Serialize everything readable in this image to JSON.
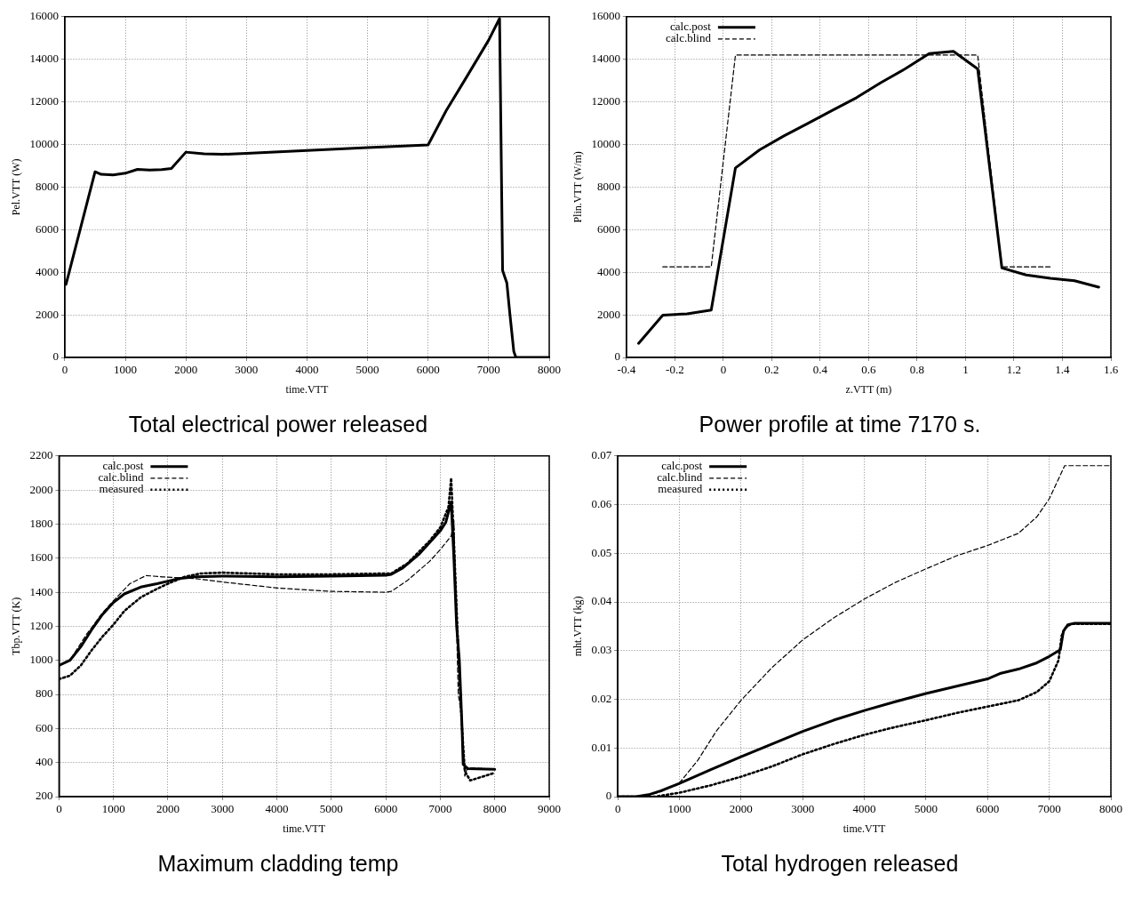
{
  "chart_data": [
    {
      "type": "line",
      "title": "Total electrical power released",
      "xlabel": "time.VTT",
      "ylabel": "Pel.VTT (W)",
      "xlim": [
        0,
        8000
      ],
      "xticks": [
        0,
        1000,
        2000,
        3000,
        4000,
        5000,
        6000,
        7000,
        8000
      ],
      "ylim": [
        0,
        16000
      ],
      "yticks": [
        0,
        2000,
        4000,
        6000,
        8000,
        10000,
        12000,
        14000,
        16000
      ],
      "grid": true,
      "legend": false,
      "marker": "none",
      "series": [
        {
          "color": "#000000",
          "line_style": "solid",
          "x": [
            20,
            500,
            600,
            800,
            1000,
            1200,
            1400,
            1600,
            1760,
            2000,
            2300,
            2600,
            3000,
            4000,
            5000,
            6000,
            6300,
            6600,
            7000,
            7180,
            7230,
            7300,
            7350,
            7415,
            7450,
            8000
          ],
          "values": [
            3430,
            8720,
            8600,
            8570,
            8650,
            8830,
            8800,
            8820,
            8870,
            9640,
            9560,
            9540,
            9580,
            9720,
            9850,
            9980,
            11600,
            13000,
            14900,
            15920,
            4080,
            3500,
            2050,
            280,
            0,
            0
          ]
        }
      ]
    },
    {
      "type": "line",
      "title": "Power profile at time 7170 s.",
      "xlabel": "z.VTT (m)",
      "ylabel": "Plin.VTT (W/m)",
      "xlim": [
        -0.4,
        1.6
      ],
      "xticks": [
        -0.4,
        -0.2,
        0,
        0.2,
        0.4,
        0.6,
        0.8,
        1,
        1.2,
        1.4,
        1.6
      ],
      "ylim": [
        0,
        16000
      ],
      "yticks": [
        0,
        2000,
        4000,
        6000,
        8000,
        10000,
        12000,
        14000,
        16000
      ],
      "grid": true,
      "legend": "top left",
      "marker": "none",
      "series": [
        {
          "name": "calc.post",
          "color": "#000000",
          "line_style": "solid",
          "x": [
            -0.35,
            -0.25,
            -0.15,
            -0.05,
            0.05,
            0.15,
            0.25,
            0.35,
            0.45,
            0.55,
            0.65,
            0.75,
            0.85,
            0.95,
            1.05,
            1.15,
            1.25,
            1.35,
            1.45,
            1.55
          ],
          "values": [
            660,
            1980,
            2050,
            2220,
            8900,
            9750,
            10400,
            11000,
            11600,
            12200,
            12900,
            13550,
            14270,
            14370,
            13550,
            4200,
            3870,
            3720,
            3600,
            3300
          ]
        },
        {
          "name": "calc.blind",
          "color": "#000000",
          "line_style": "dashed",
          "x": [
            -0.25,
            -0.05,
            0.05,
            1.05,
            1.15,
            1.35
          ],
          "values": [
            4250,
            4250,
            14200,
            14200,
            4250,
            4250
          ]
        }
      ]
    },
    {
      "type": "line",
      "title": "Maximum cladding temp",
      "xlabel": "time.VTT",
      "ylabel": "Tbp.VTT (K)",
      "xlim": [
        0,
        9000
      ],
      "xticks": [
        0,
        1000,
        2000,
        3000,
        4000,
        5000,
        6000,
        7000,
        8000,
        9000
      ],
      "ylim": [
        200,
        2200
      ],
      "yticks": [
        200,
        400,
        600,
        800,
        1000,
        1200,
        1400,
        1600,
        1800,
        2000,
        2200
      ],
      "grid": true,
      "legend": "top left",
      "marker": "none",
      "series": [
        {
          "name": "calc.post",
          "color": "#000000",
          "line_style": "solid",
          "x": [
            0,
            200,
            400,
            600,
            800,
            1000,
            1200,
            1500,
            1800,
            2000,
            2200,
            2500,
            3000,
            4000,
            5000,
            6000,
            6100,
            6300,
            6600,
            7000,
            7100,
            7200,
            7250,
            7300,
            7350,
            7400,
            7420,
            7500,
            8000
          ],
          "values": [
            970,
            1000,
            1080,
            1180,
            1270,
            1340,
            1390,
            1430,
            1450,
            1465,
            1480,
            1490,
            1495,
            1490,
            1495,
            1500,
            1505,
            1540,
            1620,
            1760,
            1810,
            1930,
            1600,
            1200,
            1000,
            600,
            390,
            365,
            360
          ]
        },
        {
          "name": "calc.blind",
          "color": "#000000",
          "line_style": "dashed",
          "x": [
            0,
            200,
            500,
            800,
            1000,
            1300,
            1600,
            1900,
            2200,
            2500,
            3000,
            4000,
            5000,
            6000,
            6100,
            6400,
            6800,
            7000,
            7200,
            7250,
            7330,
            7380,
            7450,
            7500,
            8000
          ],
          "values": [
            970,
            1000,
            1150,
            1280,
            1350,
            1450,
            1498,
            1490,
            1485,
            1480,
            1460,
            1425,
            1405,
            1400,
            1405,
            1470,
            1580,
            1650,
            1730,
            1820,
            800,
            700,
            320,
            370,
            360
          ]
        },
        {
          "name": "measured",
          "color": "#000000",
          "line_style": "dotted",
          "x": [
            0,
            200,
            400,
            600,
            800,
            1000,
            1200,
            1500,
            1800,
            2000,
            2300,
            2600,
            3000,
            4000,
            5000,
            6000,
            6100,
            6400,
            6800,
            7000,
            7150,
            7200,
            7250,
            7300,
            7350,
            7400,
            7450,
            7550,
            7700,
            8000
          ],
          "values": [
            890,
            910,
            970,
            1060,
            1140,
            1210,
            1290,
            1370,
            1420,
            1450,
            1490,
            1510,
            1515,
            1505,
            1505,
            1510,
            1510,
            1570,
            1700,
            1780,
            1900,
            2070,
            1700,
            1300,
            900,
            600,
            350,
            295,
            310,
            340
          ]
        }
      ]
    },
    {
      "type": "line",
      "title": "Total hydrogen released",
      "xlabel": "time.VTT",
      "ylabel": "mht.VTT (kg)",
      "xlim": [
        0,
        8000
      ],
      "xticks": [
        0,
        1000,
        2000,
        3000,
        4000,
        5000,
        6000,
        7000,
        8000
      ],
      "ylim": [
        0,
        0.07
      ],
      "yticks": [
        0,
        0.01,
        0.02,
        0.03,
        0.04,
        0.05,
        0.06,
        0.07
      ],
      "grid": true,
      "legend": "top left",
      "marker": "none",
      "series": [
        {
          "name": "calc.post",
          "color": "#000000",
          "line_style": "solid",
          "x": [
            0,
            300,
            500,
            700,
            1000,
            1500,
            2000,
            2500,
            3000,
            3500,
            4000,
            4500,
            5000,
            5500,
            6000,
            6200,
            6500,
            6800,
            7000,
            7180,
            7230,
            7300,
            7400,
            8000
          ],
          "values": [
            0,
            0,
            0.0004,
            0.0012,
            0.0027,
            0.0055,
            0.0082,
            0.0108,
            0.0134,
            0.0157,
            0.0177,
            0.0195,
            0.0212,
            0.0227,
            0.0242,
            0.0253,
            0.0262,
            0.0275,
            0.0288,
            0.0302,
            0.034,
            0.0353,
            0.0356,
            0.0356
          ]
        },
        {
          "name": "calc.blind",
          "color": "#000000",
          "line_style": "dashed",
          "x": [
            0,
            400,
            700,
            1000,
            1300,
            1600,
            2000,
            2500,
            3000,
            3500,
            4000,
            4500,
            5000,
            5500,
            6000,
            6500,
            6800,
            7000,
            7250,
            8000
          ],
          "values": [
            0,
            0,
            0.001,
            0.0028,
            0.0075,
            0.0135,
            0.0198,
            0.0265,
            0.0322,
            0.0367,
            0.0406,
            0.044,
            0.0468,
            0.0495,
            0.0516,
            0.0541,
            0.0575,
            0.0612,
            0.068,
            0.068
          ]
        },
        {
          "name": "measured",
          "color": "#000000",
          "line_style": "dotted",
          "x": [
            0,
            600,
            1000,
            1500,
            2000,
            2500,
            3000,
            3500,
            4000,
            4500,
            5000,
            5500,
            6000,
            6500,
            6800,
            7000,
            7150,
            7200,
            7250,
            7350,
            8000
          ],
          "values": [
            0,
            0,
            0.0008,
            0.0023,
            0.0041,
            0.0062,
            0.0087,
            0.0108,
            0.0127,
            0.0143,
            0.0157,
            0.0172,
            0.0185,
            0.0198,
            0.0215,
            0.0237,
            0.028,
            0.033,
            0.0345,
            0.0355,
            0.0355
          ]
        }
      ]
    }
  ]
}
